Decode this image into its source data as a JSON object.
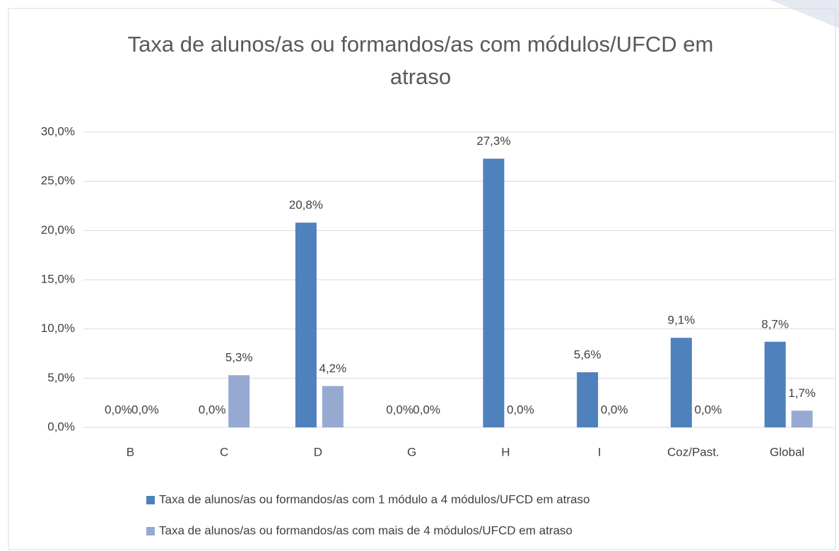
{
  "chart_data": {
    "type": "bar",
    "title": "Taxa de alunos/as ou formandos/as com módulos/UFCD em atraso",
    "categories": [
      "B",
      "C",
      "D",
      "G",
      "H",
      "I",
      "Coz/Past.",
      "Global"
    ],
    "series": [
      {
        "name": "Taxa de alunos/as ou formandos/as com 1 módulo a 4 módulos/UFCD em atraso",
        "color": "#4f81bd",
        "values": [
          0,
          0,
          20.8,
          0,
          27.3,
          5.6,
          9.1,
          8.7
        ],
        "value_labels": [
          "0,0%",
          "0,0%",
          "20,8%",
          "0,0%",
          "27,3%",
          "5,6%",
          "9,1%",
          "8,7%"
        ]
      },
      {
        "name": "Taxa de alunos/as ou formandos/as com mais de 4 módulos/UFCD em atraso",
        "color": "#95a9d1",
        "values": [
          0,
          5.3,
          4.2,
          0,
          0,
          0,
          0,
          1.7
        ],
        "value_labels": [
          "0,0%",
          "5,3%",
          "4,2%",
          "0,0%",
          "0,0%",
          "0,0%",
          "0,0%",
          "1,7%"
        ]
      }
    ],
    "ylim": [
      0,
      30
    ],
    "yticks": [
      {
        "value": 0,
        "label": "0,0%"
      },
      {
        "value": 5,
        "label": "5,0%"
      },
      {
        "value": 10,
        "label": "10,0%"
      },
      {
        "value": 15,
        "label": "15,0%"
      },
      {
        "value": 20,
        "label": "20,0%"
      },
      {
        "value": 25,
        "label": "25,0%"
      },
      {
        "value": 30,
        "label": "30,0%"
      }
    ],
    "grid": true,
    "legend": "bottom"
  }
}
